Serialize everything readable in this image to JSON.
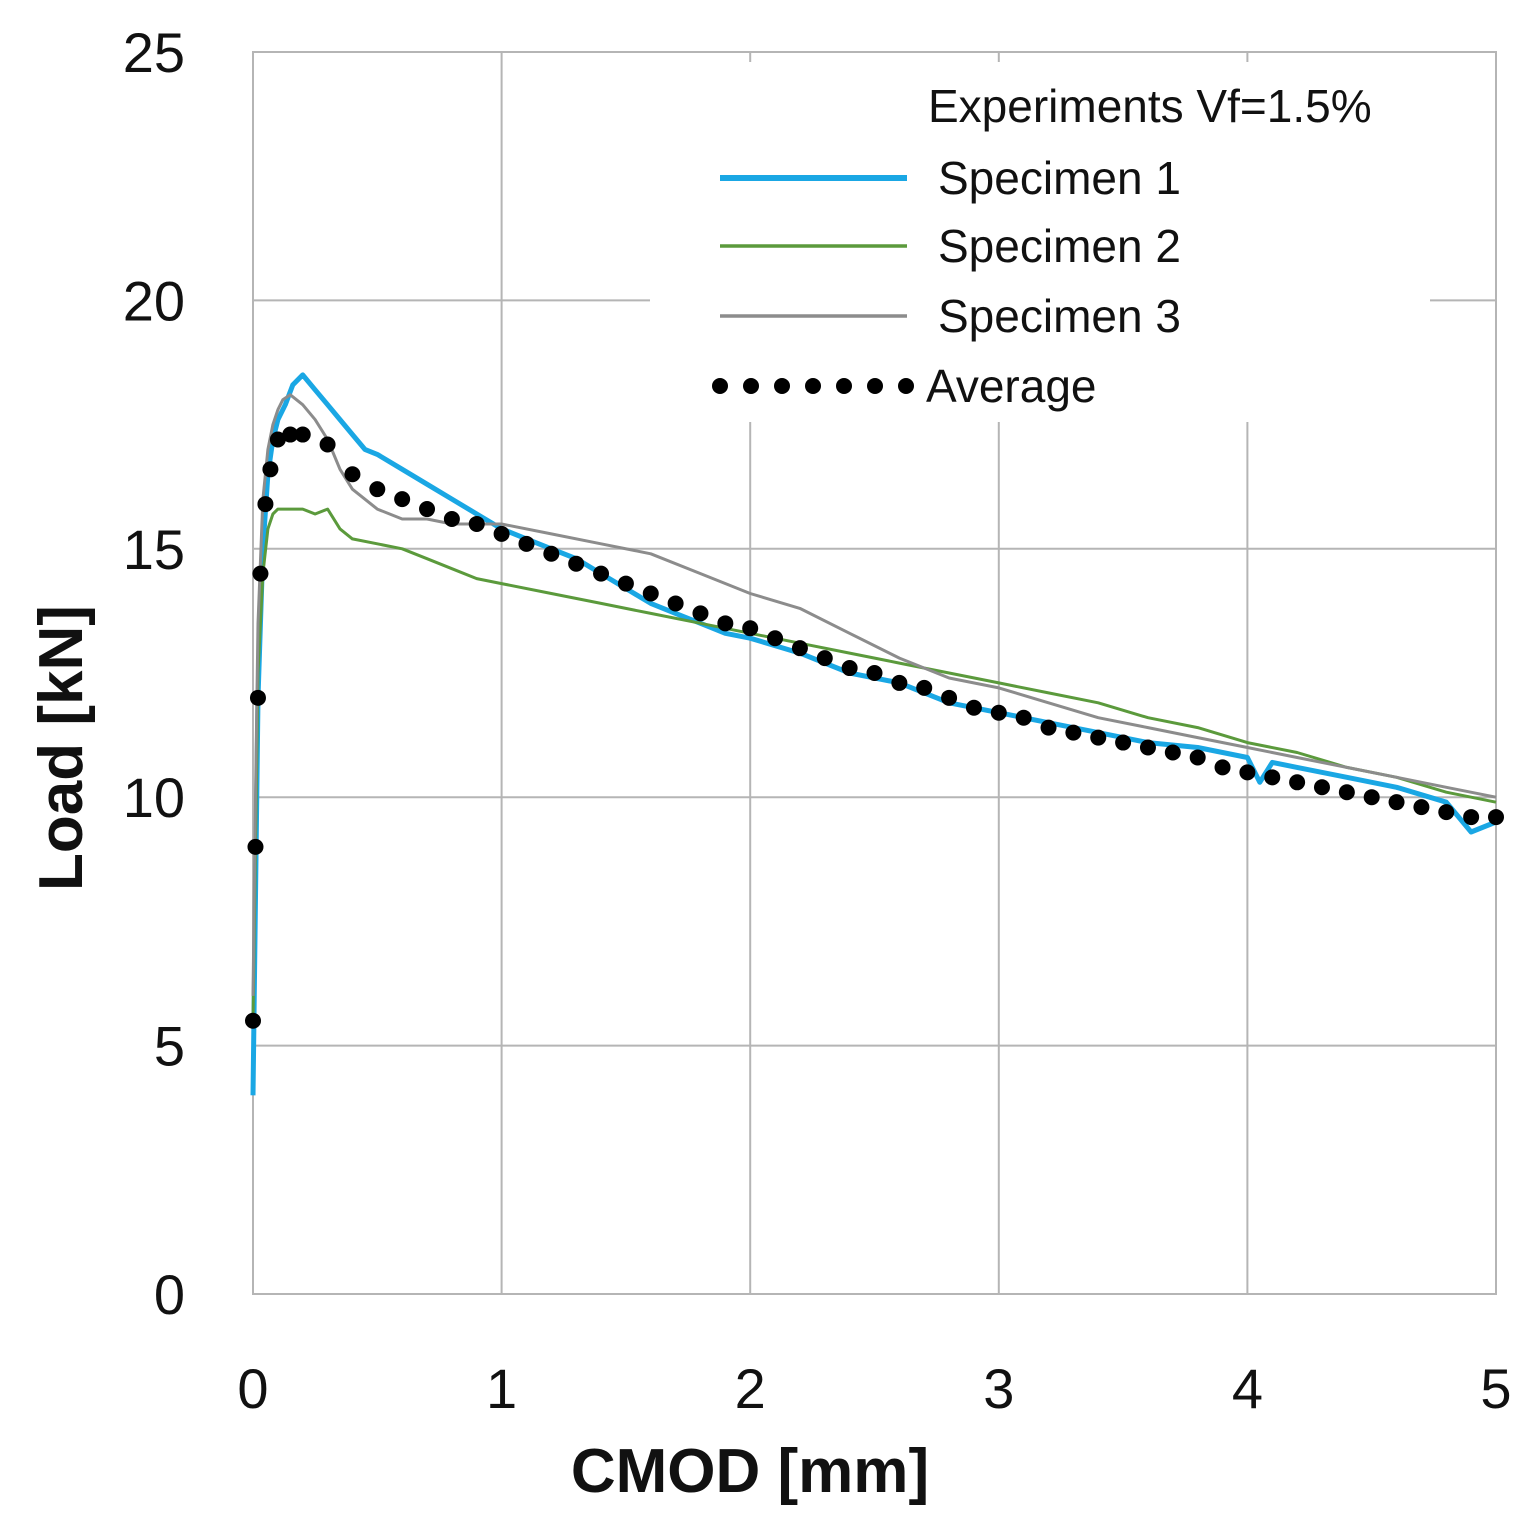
{
  "chart_data": {
    "type": "line",
    "title": "",
    "xlabel": "CMOD [mm]",
    "ylabel": "Load [kN]",
    "xlim": [
      0,
      5
    ],
    "ylim": [
      0,
      25
    ],
    "xticks": [
      0,
      1,
      2,
      3,
      4,
      5
    ],
    "yticks": [
      0,
      5,
      10,
      15,
      20,
      25
    ],
    "grid": true,
    "legend": {
      "title": "Experiments Vf=1.5%",
      "position": "top-right"
    },
    "series": [
      {
        "name": "Specimen 1",
        "color": "#1aa7e4",
        "style": "solid-thick",
        "x": [
          0,
          0.01,
          0.02,
          0.04,
          0.06,
          0.08,
          0.1,
          0.13,
          0.16,
          0.2,
          0.25,
          0.3,
          0.35,
          0.4,
          0.45,
          0.5,
          0.6,
          0.7,
          0.8,
          0.9,
          1.0,
          1.1,
          1.2,
          1.3,
          1.4,
          1.5,
          1.6,
          1.7,
          1.8,
          1.9,
          2.0,
          2.2,
          2.4,
          2.6,
          2.8,
          3.0,
          3.2,
          3.4,
          3.6,
          3.8,
          4.0,
          4.05,
          4.1,
          4.2,
          4.4,
          4.6,
          4.8,
          4.85,
          4.9,
          5.0
        ],
        "y": [
          4.0,
          8.0,
          12.0,
          15.0,
          16.5,
          17.2,
          17.6,
          17.9,
          18.3,
          18.5,
          18.2,
          17.9,
          17.6,
          17.3,
          17.0,
          16.9,
          16.6,
          16.3,
          16.0,
          15.7,
          15.4,
          15.2,
          15.0,
          14.8,
          14.5,
          14.2,
          13.9,
          13.7,
          13.5,
          13.3,
          13.2,
          12.9,
          12.5,
          12.3,
          11.9,
          11.7,
          11.5,
          11.3,
          11.1,
          11.0,
          10.8,
          10.3,
          10.7,
          10.6,
          10.4,
          10.2,
          9.9,
          9.6,
          9.3,
          9.5
        ]
      },
      {
        "name": "Specimen 2",
        "color": "#5b9a3c",
        "style": "solid",
        "x": [
          0,
          0.01,
          0.02,
          0.04,
          0.06,
          0.08,
          0.1,
          0.15,
          0.2,
          0.25,
          0.3,
          0.35,
          0.4,
          0.5,
          0.6,
          0.7,
          0.8,
          0.9,
          1.0,
          1.2,
          1.4,
          1.6,
          1.8,
          2.0,
          2.2,
          2.4,
          2.6,
          2.8,
          3.0,
          3.2,
          3.4,
          3.6,
          3.8,
          4.0,
          4.2,
          4.4,
          4.6,
          4.8,
          5.0
        ],
        "y": [
          5.5,
          9.0,
          12.5,
          14.5,
          15.4,
          15.7,
          15.8,
          15.8,
          15.8,
          15.7,
          15.8,
          15.4,
          15.2,
          15.1,
          15.0,
          14.8,
          14.6,
          14.4,
          14.3,
          14.1,
          13.9,
          13.7,
          13.5,
          13.3,
          13.1,
          12.9,
          12.7,
          12.5,
          12.3,
          12.1,
          11.9,
          11.6,
          11.4,
          11.1,
          10.9,
          10.6,
          10.4,
          10.1,
          9.9
        ]
      },
      {
        "name": "Specimen 3",
        "color": "#8c8c8c",
        "style": "solid",
        "x": [
          0,
          0.01,
          0.02,
          0.04,
          0.06,
          0.08,
          0.1,
          0.12,
          0.15,
          0.2,
          0.25,
          0.3,
          0.35,
          0.4,
          0.5,
          0.6,
          0.7,
          0.8,
          0.9,
          1.0,
          1.2,
          1.4,
          1.6,
          1.8,
          2.0,
          2.2,
          2.4,
          2.6,
          2.8,
          3.0,
          3.2,
          3.4,
          3.6,
          3.8,
          4.0,
          4.2,
          4.4,
          4.6,
          4.8,
          5.0
        ],
        "y": [
          6.0,
          10.0,
          13.5,
          16.0,
          17.0,
          17.5,
          17.8,
          18.0,
          18.1,
          17.9,
          17.6,
          17.2,
          16.6,
          16.2,
          15.8,
          15.6,
          15.6,
          15.5,
          15.5,
          15.5,
          15.3,
          15.1,
          14.9,
          14.5,
          14.1,
          13.8,
          13.3,
          12.8,
          12.4,
          12.2,
          11.9,
          11.6,
          11.4,
          11.2,
          11.0,
          10.8,
          10.6,
          10.4,
          10.2,
          10.0
        ]
      },
      {
        "name": "Average",
        "color": "#000000",
        "style": "dots",
        "x": [
          0.0,
          0.01,
          0.02,
          0.03,
          0.05,
          0.07,
          0.1,
          0.15,
          0.2,
          0.3,
          0.4,
          0.5,
          0.6,
          0.7,
          0.8,
          0.9,
          1.0,
          1.1,
          1.2,
          1.3,
          1.4,
          1.5,
          1.6,
          1.7,
          1.8,
          1.9,
          2.0,
          2.1,
          2.2,
          2.3,
          2.4,
          2.5,
          2.6,
          2.7,
          2.8,
          2.9,
          3.0,
          3.1,
          3.2,
          3.3,
          3.4,
          3.5,
          3.6,
          3.7,
          3.8,
          3.9,
          4.0,
          4.1,
          4.2,
          4.3,
          4.4,
          4.5,
          4.6,
          4.7,
          4.8,
          4.9,
          5.0
        ],
        "y": [
          5.5,
          9.0,
          12.0,
          14.5,
          15.9,
          16.6,
          17.2,
          17.3,
          17.3,
          17.1,
          16.5,
          16.2,
          16.0,
          15.8,
          15.6,
          15.5,
          15.3,
          15.1,
          14.9,
          14.7,
          14.5,
          14.3,
          14.1,
          13.9,
          13.7,
          13.5,
          13.4,
          13.2,
          13.0,
          12.8,
          12.6,
          12.5,
          12.3,
          12.2,
          12.0,
          11.8,
          11.7,
          11.6,
          11.4,
          11.3,
          11.2,
          11.1,
          11.0,
          10.9,
          10.8,
          10.6,
          10.5,
          10.4,
          10.3,
          10.2,
          10.1,
          10.0,
          9.9,
          9.8,
          9.7,
          9.6,
          9.6
        ]
      }
    ]
  }
}
